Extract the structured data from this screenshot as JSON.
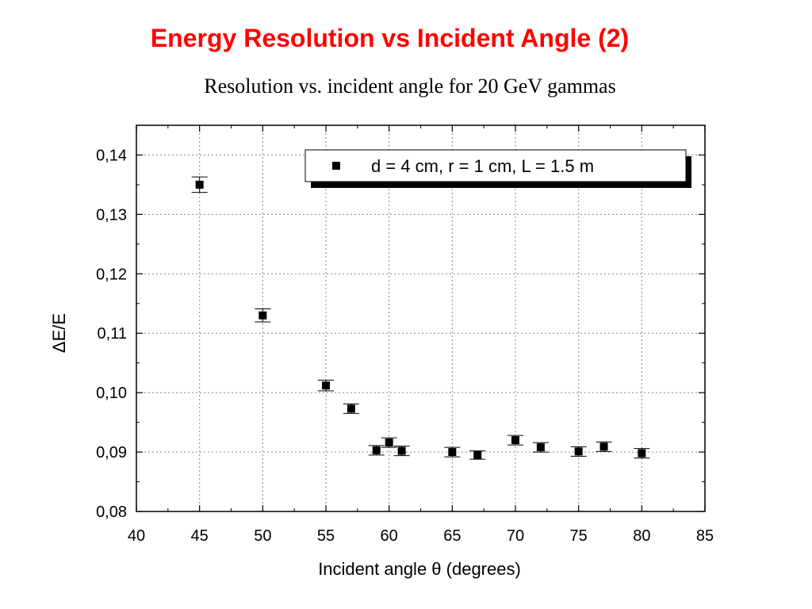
{
  "slide": {
    "title": "Energy Resolution vs Incident Angle (2)"
  },
  "chart_data": {
    "type": "scatter",
    "title": "Resolution vs. incident angle for 20 GeV gammas",
    "xlabel": "Incident angle θ (degrees)",
    "ylabel": "ΔE/E",
    "xlim": [
      40,
      85
    ],
    "ylim": [
      0.08,
      0.145
    ],
    "x_ticks": [
      40,
      45,
      50,
      55,
      60,
      65,
      70,
      75,
      80,
      85
    ],
    "x_tick_labels": [
      "40",
      "45",
      "50",
      "55",
      "60",
      "65",
      "70",
      "75",
      "80",
      "85"
    ],
    "y_ticks": [
      0.08,
      0.09,
      0.1,
      0.11,
      0.12,
      0.13,
      0.14
    ],
    "y_tick_labels": [
      "0,08",
      "0,09",
      "0,10",
      "0,11",
      "0,12",
      "0,13",
      "0,14"
    ],
    "grid": true,
    "legend_position": "top-right",
    "series": [
      {
        "name": "d = 4 cm, r = 1 cm, L = 1.5 m",
        "marker": "square",
        "color": "#000000",
        "x": [
          45,
          50,
          55,
          57,
          59,
          60,
          61,
          65,
          67,
          70,
          72,
          75,
          77,
          80
        ],
        "y": [
          0.135,
          0.113,
          0.1012,
          0.0973,
          0.0903,
          0.0916,
          0.0902,
          0.09,
          0.0895,
          0.092,
          0.0908,
          0.0901,
          0.0909,
          0.0898
        ],
        "err": [
          0.0013,
          0.0011,
          0.0009,
          0.0008,
          0.0008,
          0.0008,
          0.0008,
          0.0008,
          0.0007,
          0.0008,
          0.0008,
          0.0008,
          0.0008,
          0.0008
        ]
      }
    ]
  }
}
